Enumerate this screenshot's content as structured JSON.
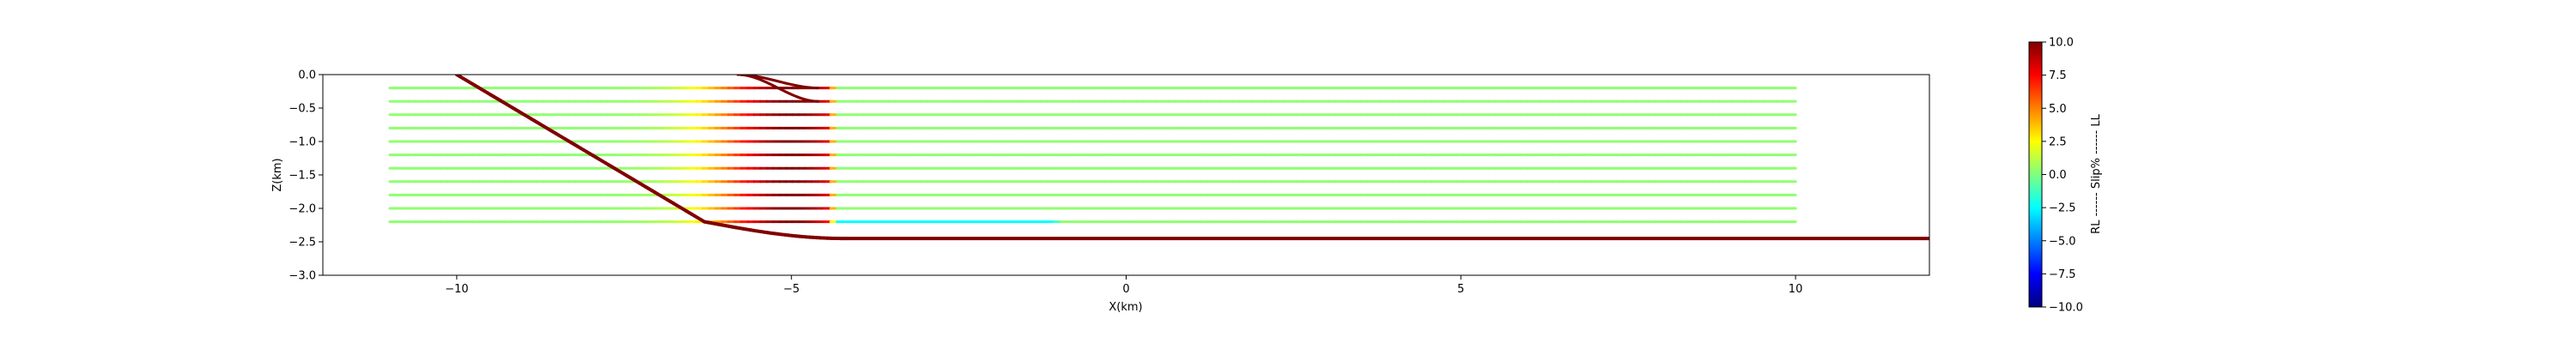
{
  "chart_data": {
    "type": "line",
    "title": "",
    "xlabel": "X(km)",
    "ylabel": "Z(km)",
    "xlim": [
      -12,
      12
    ],
    "ylim": [
      -3.0,
      0.0
    ],
    "x_ticks": [
      -10,
      -5,
      0,
      5,
      10
    ],
    "x_tick_labels": [
      "−10",
      "−5",
      "0",
      "5",
      "10"
    ],
    "y_ticks": [
      0.0,
      -0.5,
      -1.0,
      -1.5,
      -2.0,
      -2.5,
      -3.0
    ],
    "y_tick_labels": [
      "0.0",
      "−0.5",
      "−1.0",
      "−1.5",
      "−2.0",
      "−2.5",
      "−3.0"
    ],
    "grid": false,
    "colorbar": {
      "label": "RL ------ Slip% ------ LL",
      "range": [
        -10,
        10
      ],
      "colormap": "jet",
      "ticks": [
        10.0,
        7.5,
        5.0,
        2.5,
        0.0,
        -2.5,
        -5.0,
        -7.5,
        -10.0
      ],
      "tick_labels": [
        "10.0",
        "7.5",
        "5.0",
        "2.5",
        "0.0",
        "−2.5",
        "−5.0",
        "−7.5",
        "−10.0"
      ]
    },
    "main_fault": {
      "slip_value": 10.0,
      "dip_segment": {
        "x_start": -10.0,
        "z_start": 0.0,
        "x_end": -6.3,
        "z_end": -2.2
      },
      "flat_depth": -2.45,
      "x_end": 12.0
    },
    "layers": {
      "count": 11,
      "x_start": -11.0,
      "x_end": 10.0,
      "z_top": -0.2,
      "z_step": -0.2,
      "bend_x": -5.0,
      "bend_width_km": 1.5,
      "background_slip": 0.3,
      "peak_slip": 10.0
    },
    "upper_bends": {
      "count": 2,
      "z_surface": 0.0,
      "z_targets": [
        -0.2,
        -0.4
      ],
      "x_start": -5.8,
      "x_end": -4.6
    }
  }
}
